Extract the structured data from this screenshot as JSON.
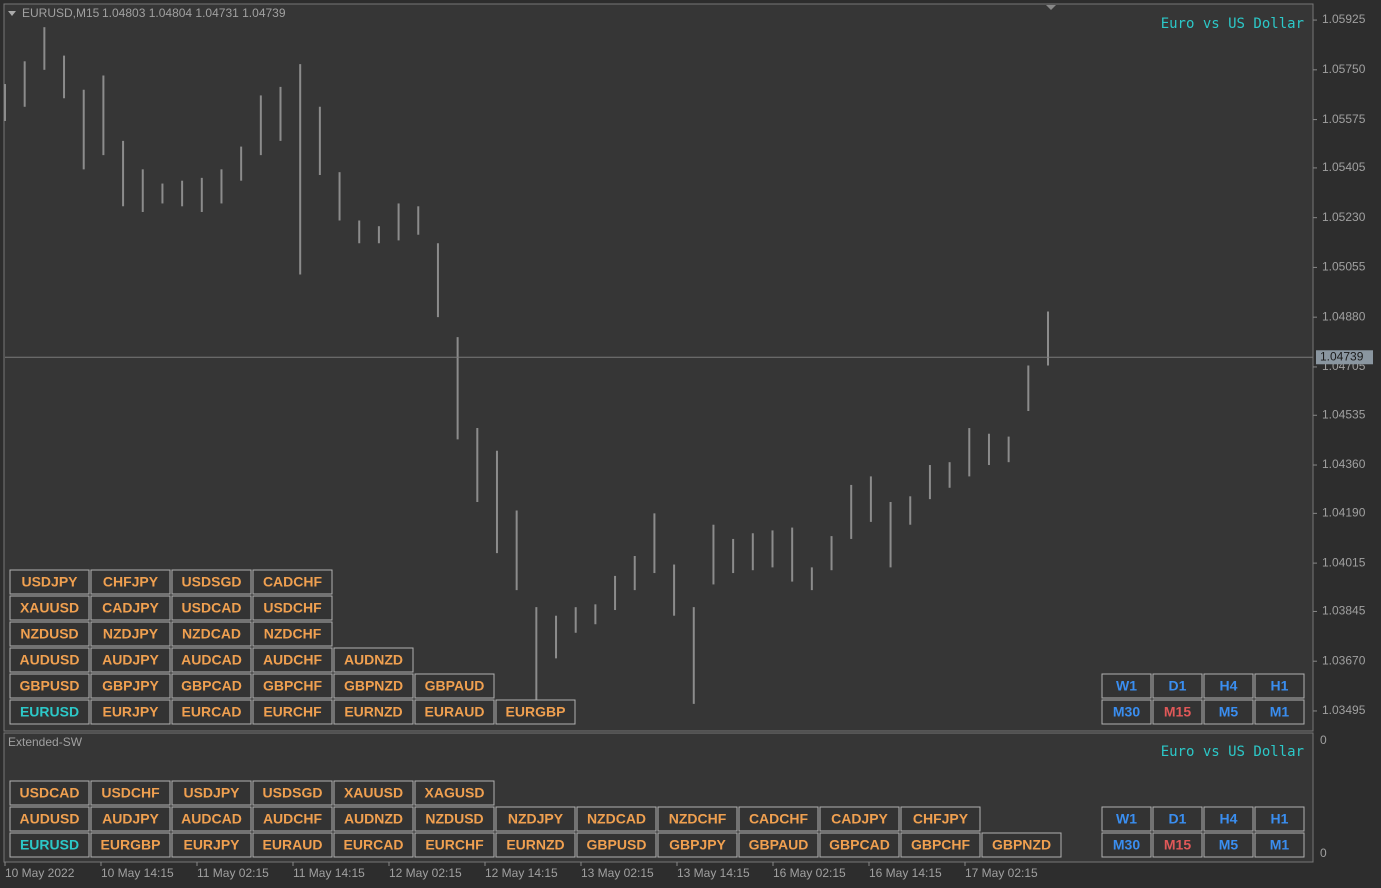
{
  "header": {
    "symbol": "EURUSD,M15",
    "ohlc": "1.04803 1.04804 1.04731 1.04739"
  },
  "chart_data": {
    "type": "range-bar",
    "title": "Euro vs US Dollar",
    "color": "#8c8c8c",
    "x_tick_labels": [
      "10 May 2022",
      "10 May 14:15",
      "11 May 02:15",
      "11 May 14:15",
      "12 May 02:15",
      "12 May 14:15",
      "13 May 02:15",
      "13 May 14:15",
      "16 May 02:15",
      "16 May 14:15",
      "17 May 02:15"
    ],
    "highs": [
      1.057,
      1.0578,
      1.059,
      1.058,
      1.0568,
      1.0573,
      1.055,
      1.054,
      1.0535,
      1.0536,
      1.0537,
      1.054,
      1.0548,
      1.0566,
      1.0569,
      1.0577,
      1.0562,
      1.0539,
      1.0522,
      1.052,
      1.0528,
      1.0527,
      1.0514,
      1.0481,
      1.0449,
      1.0441,
      1.042,
      1.0386,
      1.0383,
      1.0386,
      1.0387,
      1.0397,
      1.0404,
      1.0419,
      1.0401,
      1.0386,
      1.0415,
      1.041,
      1.0412,
      1.0413,
      1.0414,
      1.04,
      1.0411,
      1.0429,
      1.0432,
      1.0423,
      1.0425,
      1.0436,
      1.0437,
      1.0449,
      1.0447,
      1.0446,
      1.0471,
      1.049
    ],
    "lows": [
      1.0557,
      1.0562,
      1.0575,
      1.0565,
      1.054,
      1.0545,
      1.0527,
      1.0525,
      1.0528,
      1.0527,
      1.0525,
      1.0528,
      1.0536,
      1.0545,
      1.055,
      1.0503,
      1.0538,
      1.0522,
      1.0514,
      1.0514,
      1.0515,
      1.0517,
      1.0488,
      1.0445,
      1.0423,
      1.0405,
      1.0392,
      1.035,
      1.0368,
      1.0377,
      1.038,
      1.0385,
      1.0392,
      1.0398,
      1.0383,
      1.0352,
      1.0394,
      1.0398,
      1.0399,
      1.04,
      1.0395,
      1.0392,
      1.0399,
      1.041,
      1.0416,
      1.04,
      1.0415,
      1.0424,
      1.0428,
      1.0432,
      1.0436,
      1.0437,
      1.0455,
      1.0471
    ],
    "ylim": [
      1.03428,
      1.05978
    ],
    "yticks": [
      1.05925,
      {
        "value": 1.0575,
        "label": "1.05750"
      },
      1.05575,
      1.05405,
      {
        "value": 1.0523,
        "label": "1.05230"
      },
      1.05055,
      {
        "value": 1.0488,
        "label": "1.04880"
      },
      1.04705,
      1.04535,
      {
        "value": 1.0436,
        "label": "1.04360"
      },
      {
        "value": 1.0419,
        "label": "1.04190"
      },
      1.04015,
      1.03845,
      {
        "value": 1.0367,
        "label": "1.03670"
      },
      1.03495
    ],
    "current_price": 1.04739
  },
  "main_buttons": {
    "rows": [
      [
        "USDJPY",
        "CHFJPY",
        "USDSGD",
        "CADCHF"
      ],
      [
        "XAUUSD",
        "CADJPY",
        "USDCAD",
        "USDCHF"
      ],
      [
        "NZDUSD",
        "NZDJPY",
        "NZDCAD",
        "NZDCHF"
      ],
      [
        "AUDUSD",
        "AUDJPY",
        "AUDCAD",
        "AUDCHF",
        "AUDNZD"
      ],
      [
        "GBPUSD",
        "GBPJPY",
        "GBPCAD",
        "GBPCHF",
        "GBPNZD",
        "GBPAUD"
      ],
      [
        "EURUSD",
        "EURJPY",
        "EURCAD",
        "EURCHF",
        "EURNZD",
        "EURAUD",
        "EURGBP"
      ]
    ],
    "active_cell": [
      5,
      0
    ]
  },
  "main_timeframes": {
    "items": [
      "W1",
      "D1",
      "H4",
      "H1",
      "M30",
      "M15",
      "M5",
      "M1"
    ],
    "active_index": 5
  },
  "indicator": {
    "name": "Extended-SW",
    "title": "Euro vs US Dollar",
    "axis_labels": [
      "0",
      "0"
    ]
  },
  "sub_buttons": {
    "rows": [
      [
        "USDCAD",
        "USDCHF",
        "USDJPY",
        "USDSGD",
        "XAUUSD",
        "XAGUSD"
      ],
      [
        "AUDUSD",
        "AUDJPY",
        "AUDCAD",
        "AUDCHF",
        "AUDNZD",
        "NZDUSD",
        "NZDJPY",
        "NZDCAD",
        "NZDCHF",
        "CADCHF",
        "CADJPY",
        "CHFJPY"
      ],
      [
        "EURUSD",
        "EURGBP",
        "EURJPY",
        "EURAUD",
        "EURCAD",
        "EURCHF",
        "EURNZD",
        "GBPUSD",
        "GBPJPY",
        "GBPAUD",
        "GBPCAD",
        "GBPCHF",
        "GBPNZD"
      ]
    ],
    "active_cell": [
      2,
      0
    ]
  },
  "sub_timeframes": {
    "items": [
      "W1",
      "D1",
      "H4",
      "H1",
      "M30",
      "M15",
      "M5",
      "M1"
    ],
    "active_index": 5
  }
}
